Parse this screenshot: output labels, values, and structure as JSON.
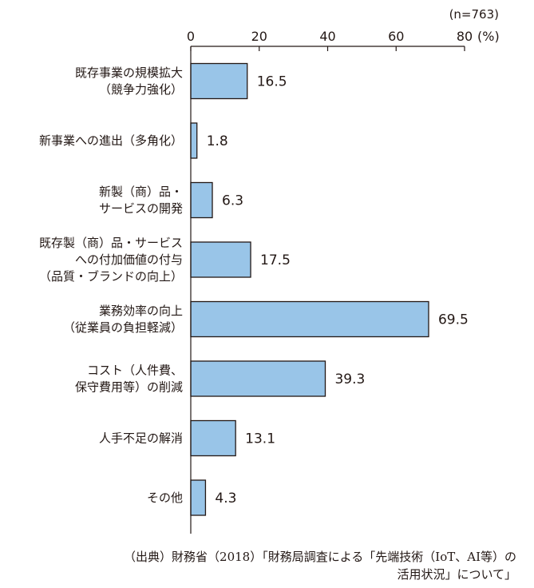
{
  "chart_data": {
    "type": "bar",
    "orientation": "horizontal",
    "sample_note": "(n=763)",
    "x_unit": "(%)",
    "xlim": [
      0,
      80
    ],
    "x_ticks": [
      "0",
      "20",
      "40",
      "60",
      "80"
    ],
    "grid": false,
    "categories": [
      [
        "既存事業の規模拡大",
        "（競争力強化）"
      ],
      [
        "新事業への進出（多角化）"
      ],
      [
        "新製（商）品・",
        "サービスの開発"
      ],
      [
        "既存製（商）品・サービス",
        "への付加価値の付与",
        "（品質・ブランドの向上）"
      ],
      [
        "業務効率の向上",
        "（従業員の負担軽減）"
      ],
      [
        "コスト（人件費、",
        "保守費用等）の削減"
      ],
      [
        "人手不足の解消"
      ],
      [
        "その他"
      ]
    ],
    "values": [
      16.5,
      1.8,
      6.3,
      17.5,
      69.5,
      39.3,
      13.1,
      4.3
    ],
    "value_labels": [
      "16.5",
      "1.8",
      "6.3",
      "17.5",
      "69.5",
      "39.3",
      "13.1",
      "4.3"
    ],
    "bar_color": "#99c5e8",
    "bar_border_color": "#231815"
  },
  "source": {
    "line1": "（出典）財務省（2018）「財務局調査による「先端技術（IoT、AI等）の",
    "line2": "活用状況」について」"
  }
}
